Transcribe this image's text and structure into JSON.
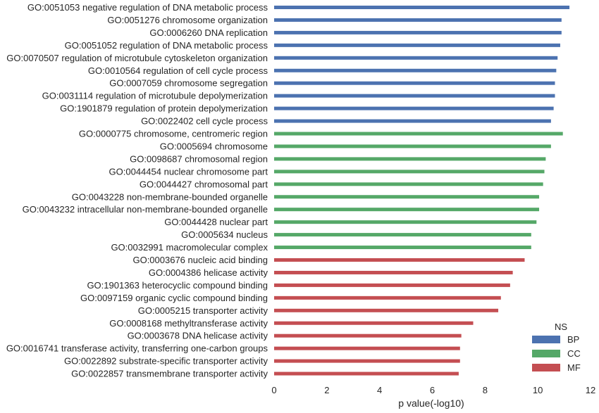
{
  "chart_data": {
    "type": "bar",
    "orientation": "horizontal",
    "xlabel": "p value(-log10)",
    "xlim": [
      0,
      12
    ],
    "xticks": [
      "0",
      "2",
      "4",
      "6",
      "8",
      "10",
      "12"
    ],
    "grid": false,
    "legend": {
      "title": "NS",
      "placement": "bottom-right",
      "entries": [
        {
          "name": "BP",
          "color": "#4c72b0"
        },
        {
          "name": "CC",
          "color": "#55a868"
        },
        {
          "name": "MF",
          "color": "#c44e52"
        }
      ]
    },
    "categories": [
      "GO:0051053 negative regulation of DNA metabolic process",
      "GO:0051276 chromosome organization",
      "GO:0006260 DNA replication",
      "GO:0051052 regulation of DNA metabolic process",
      "GO:0070507 regulation of microtubule cytoskeleton organization",
      "GO:0010564 regulation of cell cycle process",
      "GO:0007059 chromosome segregation",
      "GO:0031114 regulation of microtubule depolymerization",
      "GO:1901879 regulation of protein depolymerization",
      "GO:0022402 cell cycle process",
      "GO:0000775 chromosome, centromeric region",
      "GO:0005694 chromosome",
      "GO:0098687 chromosomal region",
      "GO:0044454 nuclear chromosome part",
      "GO:0044427 chromosomal part",
      "GO:0043228 non-membrane-bounded organelle",
      "GO:0043232 intracellular non-membrane-bounded organelle",
      "GO:0044428 nuclear part",
      "GO:0005634 nucleus",
      "GO:0032991 macromolecular complex",
      "GO:0003676 nucleic acid binding",
      "GO:0004386 helicase activity",
      "GO:1901363 heterocyclic compound binding",
      "GO:0097159 organic cyclic compound binding",
      "GO:0005215 transporter activity",
      "GO:0008168 methyltransferase activity",
      "GO:0003678 DNA helicase activity",
      "GO:0016741 transferase activity, transferring one-carbon groups",
      "GO:0022892 substrate-specific transporter activity",
      "GO:0022857 transmembrane transporter activity"
    ],
    "values": [
      11.2,
      10.9,
      10.9,
      10.85,
      10.75,
      10.7,
      10.65,
      10.65,
      10.6,
      10.5,
      10.95,
      10.5,
      10.3,
      10.25,
      10.2,
      10.05,
      10.05,
      9.95,
      9.75,
      9.75,
      9.5,
      9.05,
      8.95,
      8.6,
      8.5,
      7.55,
      7.1,
      7.05,
      7.05,
      7.0
    ],
    "groups": [
      "BP",
      "BP",
      "BP",
      "BP",
      "BP",
      "BP",
      "BP",
      "BP",
      "BP",
      "BP",
      "CC",
      "CC",
      "CC",
      "CC",
      "CC",
      "CC",
      "CC",
      "CC",
      "CC",
      "CC",
      "MF",
      "MF",
      "MF",
      "MF",
      "MF",
      "MF",
      "MF",
      "MF",
      "MF",
      "MF"
    ]
  }
}
